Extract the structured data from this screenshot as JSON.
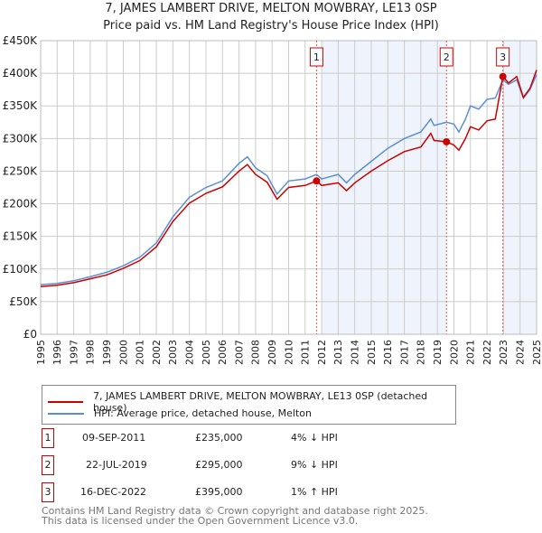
{
  "title": "7, JAMES LAMBERT DRIVE, MELTON MOWBRAY, LE13 0SP",
  "subtitle": "Price paid vs. HM Land Registry's House Price Index (HPI)",
  "colors": {
    "property": "#cc0000",
    "hpi": "#5b8fd4",
    "shade": "#eef3fc",
    "grid": "#cccccc"
  },
  "chart_data": {
    "type": "line",
    "title": "7, JAMES LAMBERT DRIVE, MELTON MOWBRAY, LE13 0SP",
    "xlim": [
      1995,
      2025
    ],
    "ylim": [
      0,
      450000
    ],
    "x_ticks": [
      "1995",
      "1996",
      "1997",
      "1998",
      "1999",
      "2000",
      "2001",
      "2002",
      "2003",
      "2004",
      "2005",
      "2006",
      "2007",
      "2008",
      "2009",
      "2010",
      "2011",
      "2012",
      "2013",
      "2014",
      "2015",
      "2016",
      "2017",
      "2018",
      "2019",
      "2020",
      "2021",
      "2022",
      "2023",
      "2024",
      "2025"
    ],
    "y_ticks": [
      {
        "value": 0,
        "label": "£0"
      },
      {
        "value": 50000,
        "label": "£50K"
      },
      {
        "value": 100000,
        "label": "£100K"
      },
      {
        "value": 150000,
        "label": "£150K"
      },
      {
        "value": 200000,
        "label": "£200K"
      },
      {
        "value": 250000,
        "label": "£250K"
      },
      {
        "value": 300000,
        "label": "£300K"
      },
      {
        "value": 350000,
        "label": "£350K"
      },
      {
        "value": 400000,
        "label": "£400K"
      },
      {
        "value": 450000,
        "label": "£450K"
      }
    ],
    "grid": true,
    "shaded_ranges": [
      [
        2012,
        2019.55
      ],
      [
        2023,
        2025
      ]
    ],
    "series": [
      {
        "name": "7, JAMES LAMBERT DRIVE, MELTON MOWBRAY, LE13 0SP (detached house)",
        "x": [
          1995,
          1996,
          1997,
          1998,
          1999,
          2000,
          2001,
          2002,
          2003,
          2004,
          2005,
          2006,
          2007,
          2007.5,
          2008,
          2008.7,
          2009.3,
          2010,
          2011,
          2011.69,
          2012,
          2013,
          2013.5,
          2014,
          2015,
          2016,
          2017,
          2018,
          2018.6,
          2018.8,
          2019.55,
          2020,
          2020.3,
          2020.7,
          2021,
          2021.5,
          2022,
          2022.5,
          2022.96,
          2023.3,
          2023.8,
          2024.2,
          2024.6,
          2025
        ],
        "y": [
          73000,
          75000,
          79000,
          85000,
          91000,
          101000,
          113000,
          134000,
          173000,
          201000,
          216000,
          226000,
          250000,
          260000,
          245000,
          233000,
          207000,
          225000,
          228000,
          235000,
          228000,
          232000,
          220000,
          232000,
          250000,
          266000,
          280000,
          287000,
          308000,
          297000,
          295000,
          290000,
          282000,
          300000,
          318000,
          313000,
          327000,
          330000,
          395000,
          385000,
          395000,
          363000,
          377000,
          405000
        ]
      },
      {
        "name": "HPI: Average price, detached house, Melton",
        "x": [
          1995,
          1996,
          1997,
          1998,
          1999,
          2000,
          2001,
          2002,
          2003,
          2004,
          2005,
          2006,
          2007,
          2007.5,
          2008,
          2008.7,
          2009.3,
          2010,
          2011,
          2011.69,
          2012,
          2013,
          2013.5,
          2014,
          2015,
          2016,
          2017,
          2018,
          2018.6,
          2018.8,
          2019.55,
          2020,
          2020.3,
          2020.7,
          2021,
          2021.5,
          2022,
          2022.5,
          2022.96,
          2023.3,
          2023.8,
          2024.2,
          2024.6,
          2025
        ],
        "y": [
          76000,
          78000,
          82000,
          88000,
          95000,
          105000,
          118000,
          140000,
          180000,
          210000,
          225000,
          235000,
          262000,
          272000,
          255000,
          243000,
          215000,
          235000,
          238000,
          245000,
          238000,
          245000,
          232000,
          245000,
          265000,
          285000,
          300000,
          310000,
          330000,
          320000,
          325000,
          322000,
          310000,
          330000,
          350000,
          345000,
          360000,
          362000,
          390000,
          383000,
          390000,
          362000,
          375000,
          398000
        ]
      }
    ],
    "annotations": [
      {
        "label": "1",
        "x": 2011.69,
        "y": 235000
      },
      {
        "label": "2",
        "x": 2019.55,
        "y": 295000
      },
      {
        "label": "3",
        "x": 2022.96,
        "y": 395000
      }
    ]
  },
  "legend": {
    "property": "7, JAMES LAMBERT DRIVE, MELTON MOWBRAY, LE13 0SP (detached house)",
    "hpi": "HPI: Average price, detached house, Melton"
  },
  "sales": [
    {
      "num": "1",
      "date": "09-SEP-2011",
      "price": "£235,000",
      "hpi": "4% ↓ HPI"
    },
    {
      "num": "2",
      "date": "22-JUL-2019",
      "price": "£295,000",
      "hpi": "9% ↓ HPI"
    },
    {
      "num": "3",
      "date": "16-DEC-2022",
      "price": "£395,000",
      "hpi": "1% ↑ HPI"
    }
  ],
  "footer": {
    "line1": "Contains HM Land Registry data © Crown copyright and database right 2025.",
    "line2": "This data is licensed under the Open Government Licence v3.0."
  }
}
